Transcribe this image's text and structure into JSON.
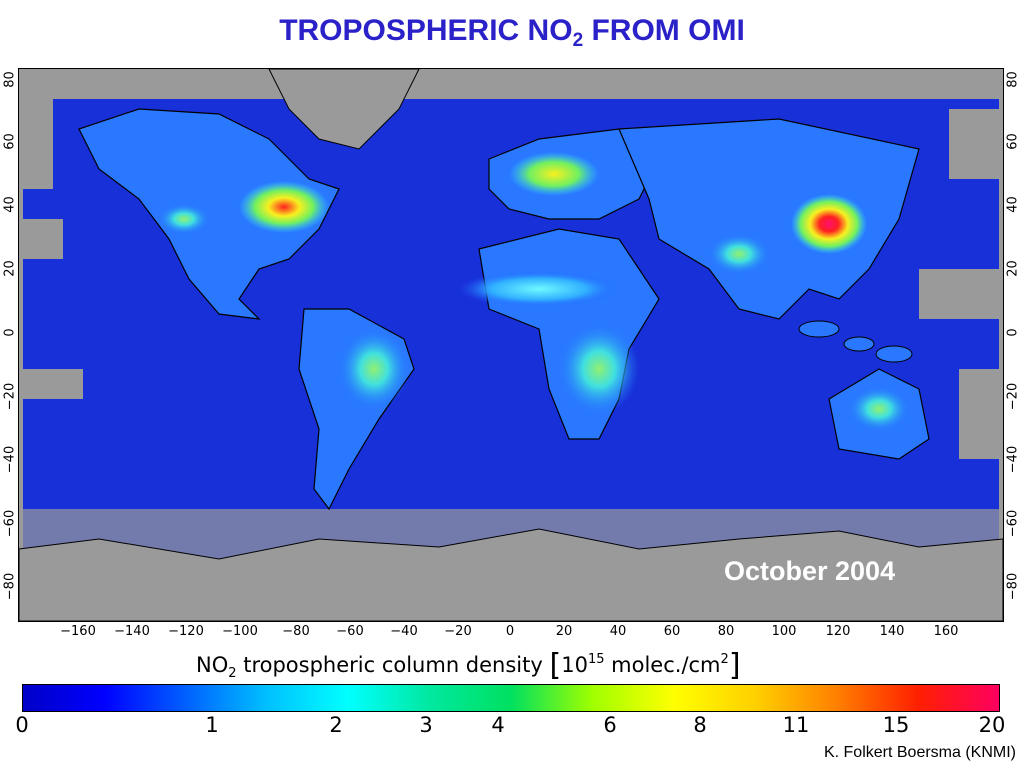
{
  "title": {
    "main": "TROPOSPHERIC NO",
    "sub": "2",
    "rest": " FROM OMI"
  },
  "map": {
    "month_label": "October 2004",
    "lat_ticks": [
      "80",
      "60",
      "40",
      "20",
      "0",
      "−20",
      "−40",
      "−60",
      "−80"
    ],
    "lon_ticks": [
      "−160",
      "−140",
      "−120",
      "−100",
      "−80",
      "−60",
      "−40",
      "−20",
      "0",
      "20",
      "40",
      "60",
      "80",
      "100",
      "120",
      "140",
      "160"
    ],
    "colors": {
      "ocean": "#1830d8",
      "deep": "#0a14c8",
      "nodata": "#9a9a9a",
      "land_low": "#2080ff",
      "cyan": "#30e0ff",
      "green": "#70f060",
      "yellow": "#f8f020",
      "red": "#ff2020",
      "magenta": "#ff1070"
    }
  },
  "colorbar": {
    "title_a": "NO",
    "title_sub": "2",
    "title_b": " tropospheric column density ",
    "unit_a": "10",
    "unit_sup1": "15",
    "unit_b": " molec./cm",
    "unit_sup2": "2",
    "bracket_open": "[",
    "bracket_close": "]",
    "ticks": [
      "0",
      "1",
      "2",
      "3",
      "4",
      "6",
      "8",
      "11",
      "15",
      "20"
    ],
    "gradient": [
      "#0000c8",
      "#0000ff",
      "#0060ff",
      "#00c0ff",
      "#00ffff",
      "#00e8a0",
      "#00e060",
      "#a0ff00",
      "#ffff00",
      "#ffd000",
      "#ff8000",
      "#ff2000",
      "#ff0060"
    ]
  },
  "credit": "K. Folkert Boersma (KNMI)"
}
